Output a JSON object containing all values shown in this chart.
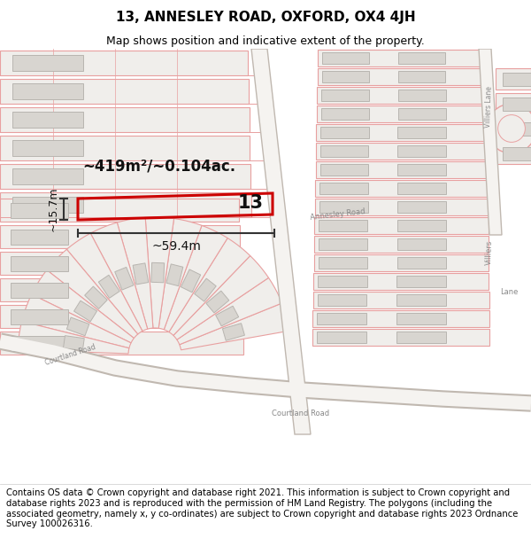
{
  "title": "13, ANNESLEY ROAD, OXFORD, OX4 4JH",
  "subtitle": "Map shows position and indicative extent of the property.",
  "area_text": "~419m²/~0.104ac.",
  "width_label": "~59.4m",
  "height_label": "~15.7m",
  "number_label": "13",
  "footer_text": "Contains OS data © Crown copyright and database right 2021. This information is subject to Crown copyright and database rights 2023 and is reproduced with the permission of HM Land Registry. The polygons (including the associated geometry, namely x, y co-ordinates) are subject to Crown copyright and database rights 2023 Ordnance Survey 100026316.",
  "bg_color": "#f5f3f0",
  "map_bg": "#f0eeeb",
  "parcel_line_color": "#e8a0a0",
  "road_fill_color": "#f8f6f3",
  "road_edge_color": "#d0c8c0",
  "property_outline_color": "#cc0000",
  "building_color": "#d8d5d0",
  "building_outline": "#b8b5b0",
  "annotation_color": "#222222",
  "title_fontsize": 11,
  "subtitle_fontsize": 9,
  "footer_fontsize": 7.2,
  "label_color": "#888888"
}
